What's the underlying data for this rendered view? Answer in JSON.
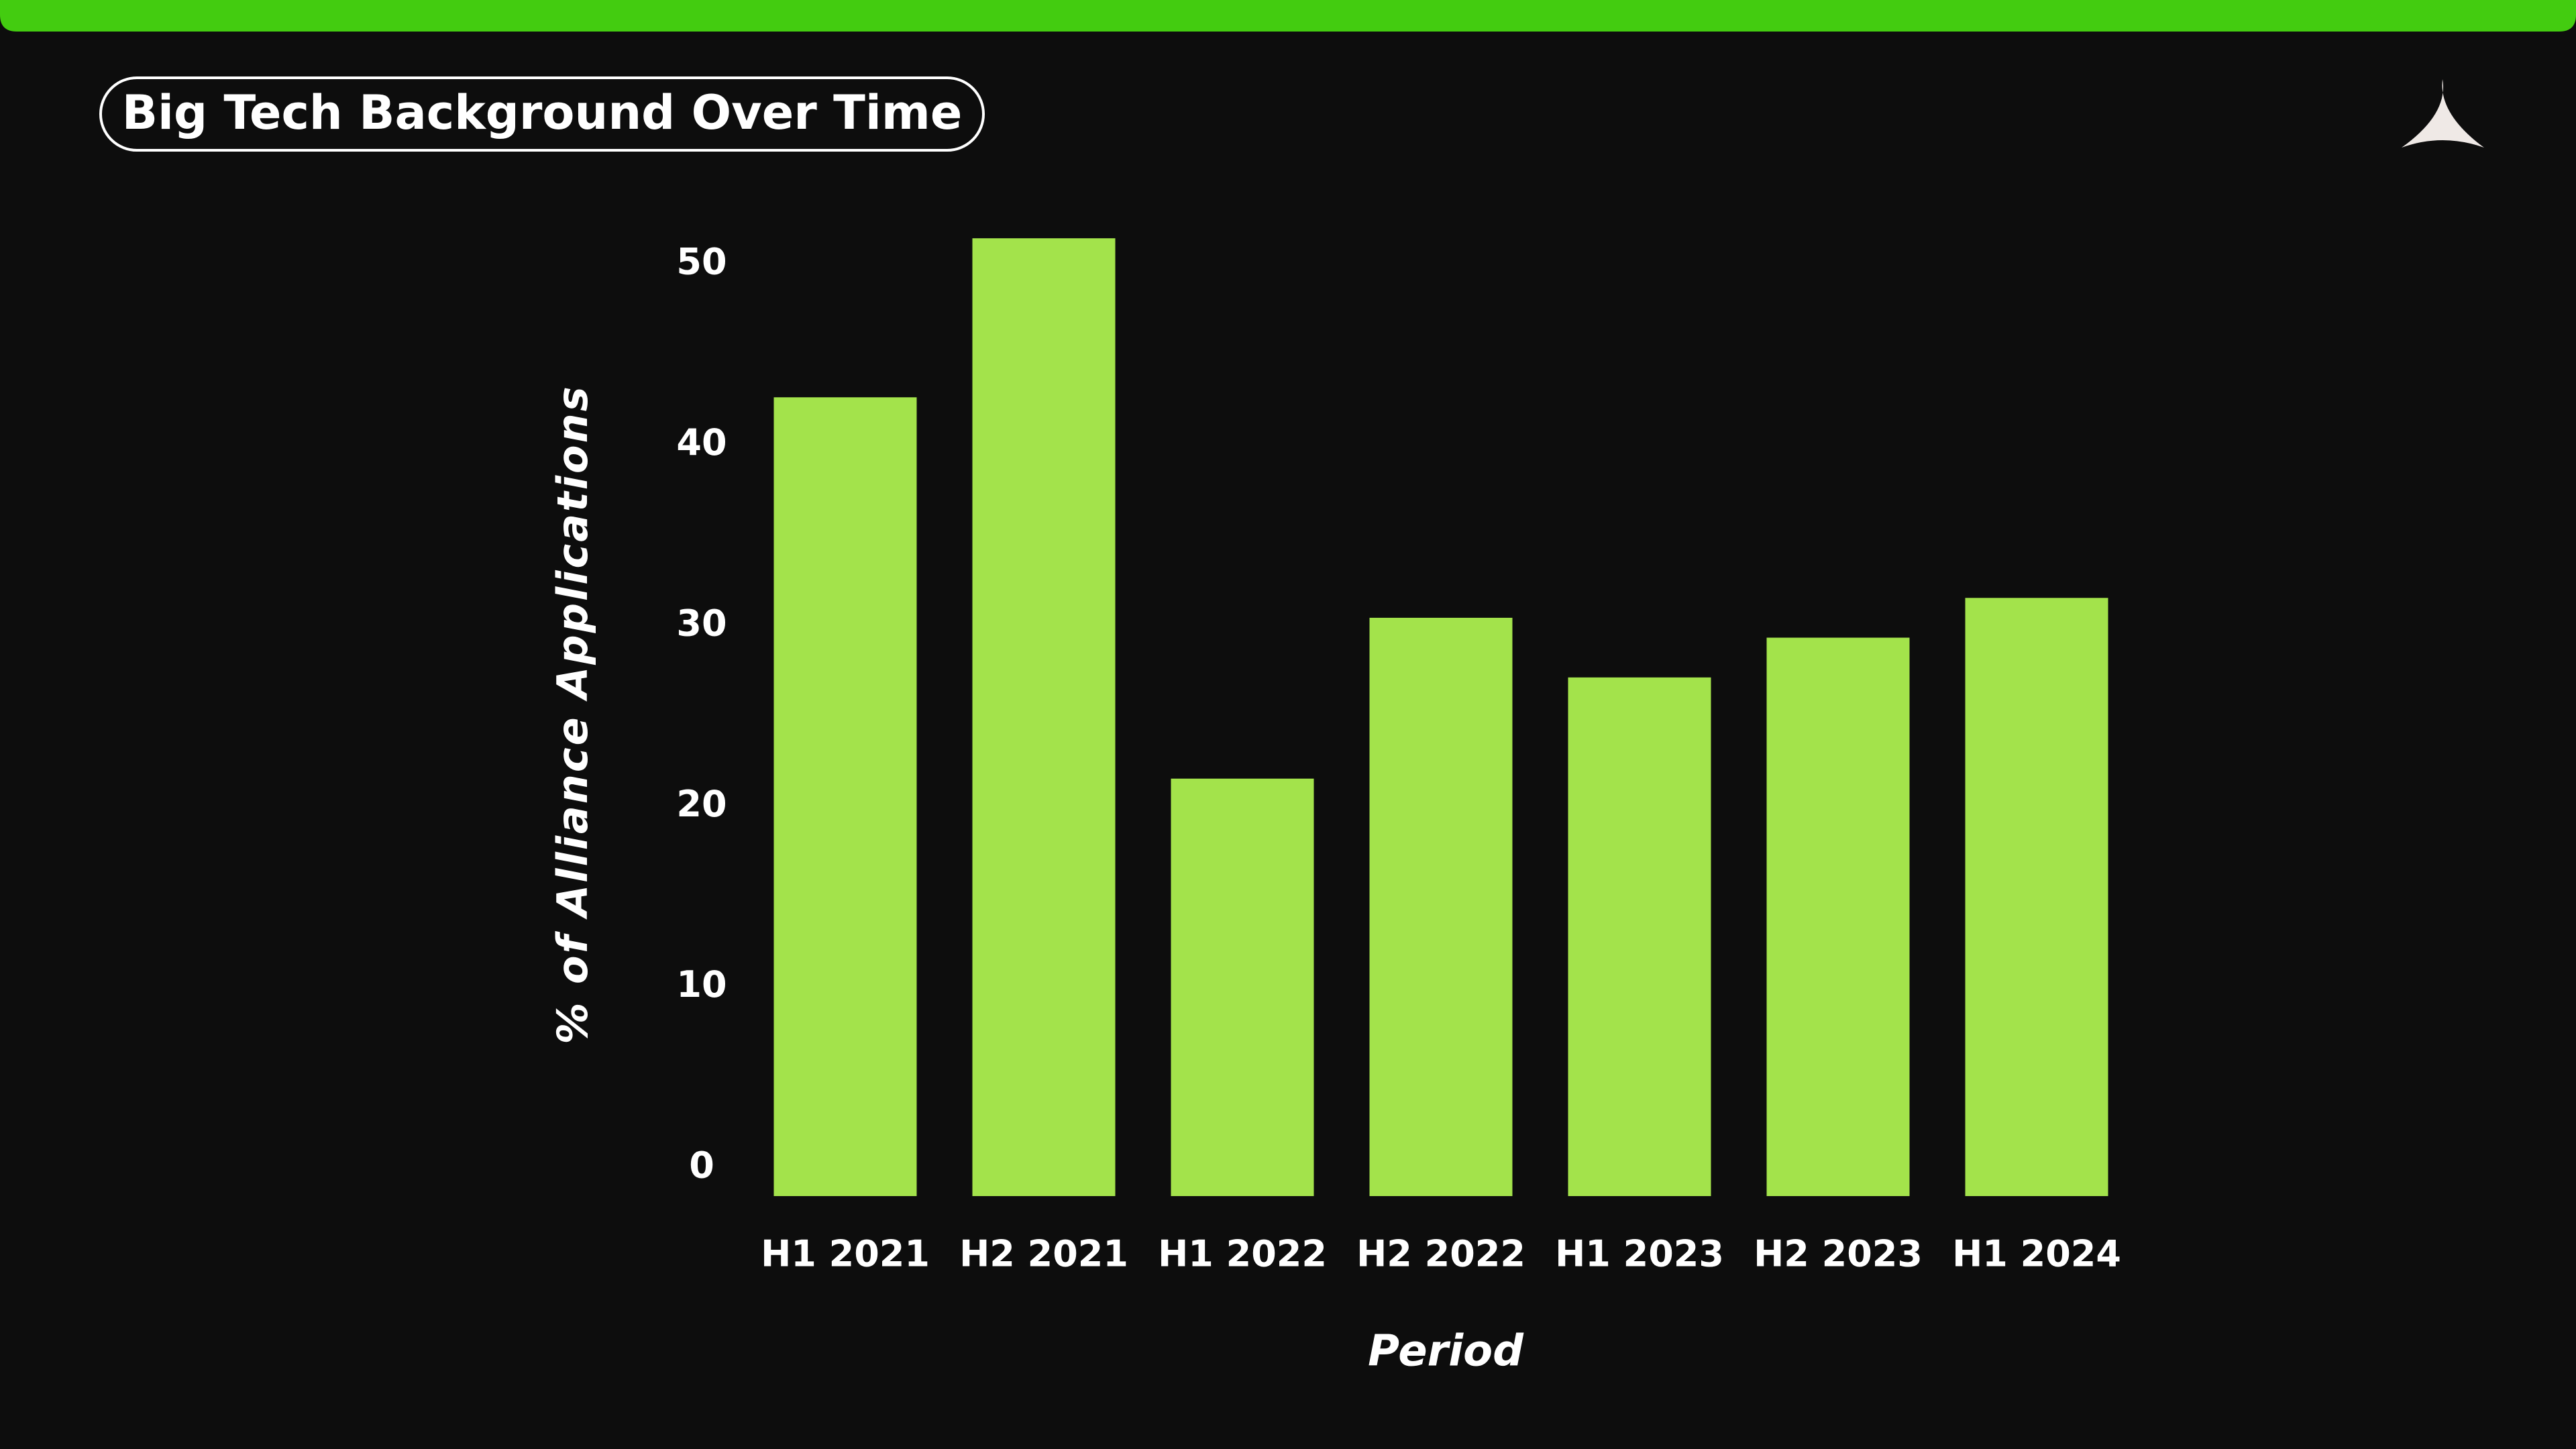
{
  "chart_data": {
    "type": "bar",
    "title": "Big Tech Background Over Time",
    "categories": [
      "H1 2021",
      "H2 2021",
      "H1 2022",
      "H2 2022",
      "H1 2023",
      "H2 2023",
      "H1 2024"
    ],
    "values": [
      44.2,
      53.0,
      23.1,
      32.0,
      28.7,
      30.9,
      33.1
    ],
    "color": "#a3e34b",
    "ylim": [
      0,
      55
    ],
    "yticks": [
      0,
      10,
      20,
      30,
      40,
      50
    ],
    "x_label": "Period",
    "y_label": "% of Alliance Applications",
    "grid": false
  }
}
